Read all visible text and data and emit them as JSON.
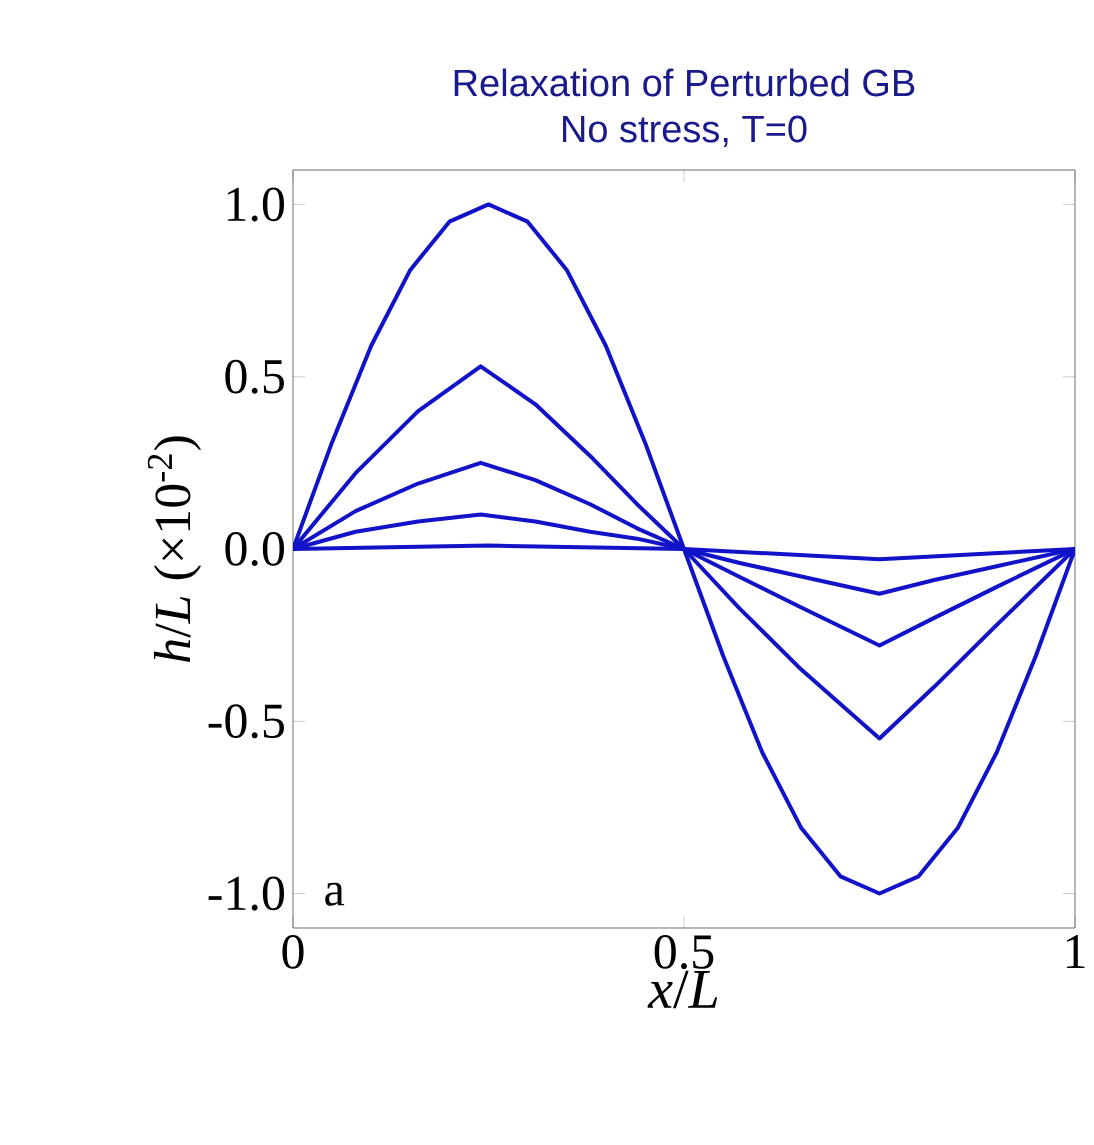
{
  "chart_data": {
    "type": "line",
    "title": "Relaxation of Perturbed GB",
    "subtitle": "No stress, T=0",
    "xlabel": "*x*/*L*",
    "ylabel": "*h*/*L* (×10$^{-2}$)",
    "annotations": [
      "a"
    ],
    "xlim": [
      0,
      1
    ],
    "ylim": [
      -1.1,
      1.1
    ],
    "xticks": [
      0,
      0.5,
      1
    ],
    "yticks": [
      {
        "value": -1,
        "label": "-1.0"
      },
      {
        "value": -0.5,
        "label": "-0.5"
      },
      {
        "value": 0,
        "label": "0.0"
      },
      {
        "value": 0.5,
        "label": "0.5"
      },
      {
        "value": 1,
        "label": "1.0"
      }
    ],
    "grid": false,
    "marker": "none",
    "line_style": "solid",
    "series": [
      {
        "color": "#1212c8",
        "x": [
          0,
          0.05,
          0.1,
          0.15,
          0.2,
          0.25,
          0.3,
          0.35,
          0.4,
          0.45,
          0.5,
          0.55,
          0.6,
          0.65,
          0.7,
          0.75,
          0.8,
          0.85,
          0.9,
          0.95,
          1
        ],
        "values": [
          0,
          0.31,
          0.59,
          0.81,
          0.95,
          1.0,
          0.95,
          0.81,
          0.59,
          0.31,
          0,
          -0.31,
          -0.59,
          -0.81,
          -0.95,
          -1.0,
          -0.95,
          -0.81,
          -0.59,
          -0.31,
          0
        ]
      },
      {
        "color": "#1212c8",
        "x": [
          0,
          0.08,
          0.16,
          0.24,
          0.31,
          0.38,
          0.44,
          0.5,
          0.57,
          0.65,
          0.75,
          0.82,
          0.9,
          1
        ],
        "values": [
          0,
          0.22,
          0.4,
          0.53,
          0.42,
          0.27,
          0.13,
          0,
          -0.17,
          -0.35,
          -0.55,
          -0.4,
          -0.22,
          0
        ]
      },
      {
        "color": "#1212c8",
        "x": [
          0,
          0.08,
          0.16,
          0.24,
          0.31,
          0.38,
          0.44,
          0.5,
          0.57,
          0.65,
          0.75,
          0.82,
          0.9,
          1
        ],
        "values": [
          0,
          0.11,
          0.19,
          0.25,
          0.2,
          0.13,
          0.06,
          0,
          -0.08,
          -0.17,
          -0.28,
          -0.2,
          -0.11,
          0
        ]
      },
      {
        "color": "#1212c8",
        "x": [
          0,
          0.08,
          0.16,
          0.24,
          0.31,
          0.38,
          0.44,
          0.5,
          0.57,
          0.65,
          0.75,
          0.82,
          0.9,
          1
        ],
        "values": [
          0,
          0.05,
          0.08,
          0.1,
          0.08,
          0.05,
          0.03,
          0,
          -0.04,
          -0.08,
          -0.13,
          -0.09,
          -0.05,
          0
        ]
      },
      {
        "color": "#1212c8",
        "x": [
          0,
          0.25,
          0.5,
          0.75,
          1
        ],
        "values": [
          0,
          0.01,
          0,
          -0.03,
          0
        ]
      }
    ]
  }
}
